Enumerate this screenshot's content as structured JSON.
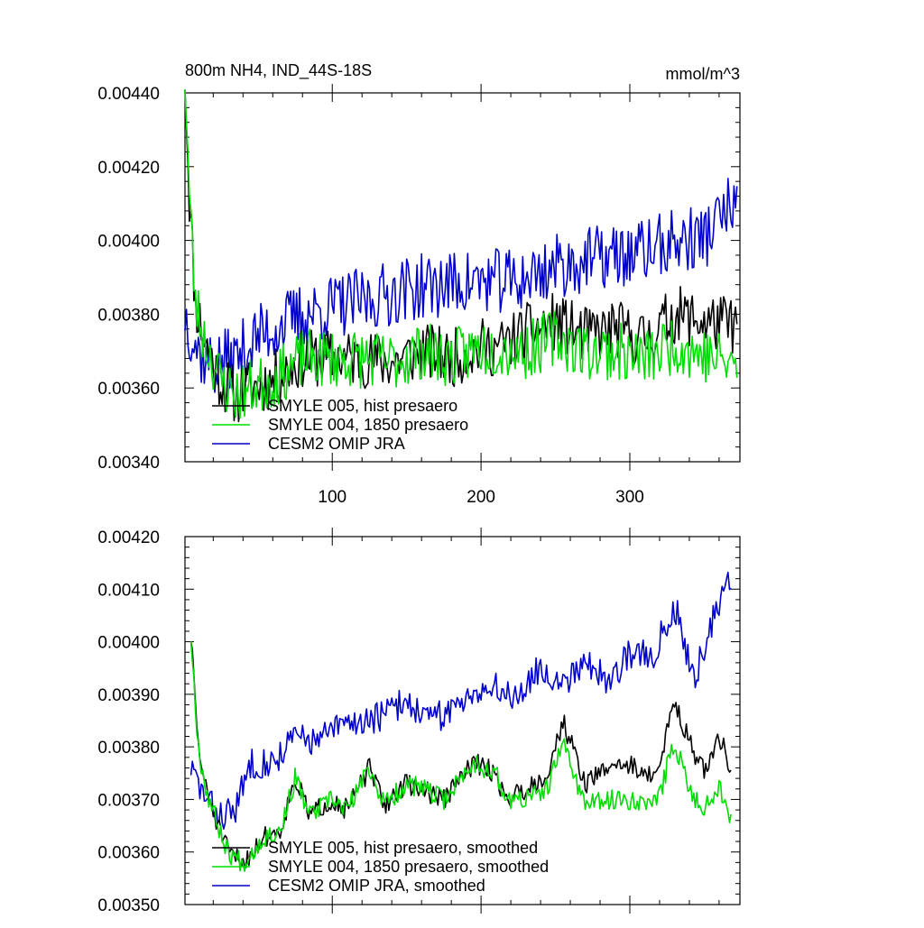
{
  "colors": {
    "hist": "#000000",
    "pre1850": "#00dd00",
    "omip": "#0000cc",
    "axis": "#000000",
    "background": "#ffffff"
  },
  "chart_data": [
    {
      "type": "line",
      "title": "800m NH4, IND_44S-18S",
      "units": "mmol/m^3",
      "xlim": [
        1,
        374
      ],
      "ylim": [
        0.0034,
        0.0044
      ],
      "x_ticks": [
        100,
        200,
        300
      ],
      "y_ticks": [
        0.0034,
        0.0036,
        0.0038,
        0.004,
        0.0042,
        0.0044
      ],
      "y_tick_labels": [
        "0.00340",
        "0.00360",
        "0.00380",
        "0.00400",
        "0.00420",
        "0.00440"
      ],
      "x_tick_labels": [
        "100",
        "200",
        "300"
      ],
      "legend_position": "bottom-left",
      "series": [
        {
          "name": "SMYLE 005, hist presaero",
          "color_key": "hist",
          "x_start": 1,
          "x_end": 372,
          "anchors": [
            [
              1,
              0.00445
            ],
            [
              4,
              0.00412
            ],
            [
              8,
              0.00383
            ],
            [
              15,
              0.00372
            ],
            [
              25,
              0.00362
            ],
            [
              35,
              0.00358
            ],
            [
              45,
              0.0036
            ],
            [
              60,
              0.00362
            ],
            [
              80,
              0.00368
            ],
            [
              100,
              0.00368
            ],
            [
              120,
              0.00368
            ],
            [
              140,
              0.00367
            ],
            [
              160,
              0.0037
            ],
            [
              180,
              0.00368
            ],
            [
              200,
              0.00371
            ],
            [
              213,
              0.00371
            ],
            [
              230,
              0.00375
            ],
            [
              250,
              0.00378
            ],
            [
              270,
              0.00374
            ],
            [
              290,
              0.00376
            ],
            [
              310,
              0.00373
            ],
            [
              330,
              0.0038
            ],
            [
              350,
              0.00378
            ],
            [
              372,
              0.00377
            ]
          ],
          "noise": 8e-05,
          "seed": 11
        },
        {
          "name": "SMYLE 004, 1850 presaero",
          "color_key": "pre1850",
          "x_start": 1,
          "x_end": 372,
          "anchors": [
            [
              1,
              0.00445
            ],
            [
              4,
              0.00412
            ],
            [
              8,
              0.00383
            ],
            [
              15,
              0.00372
            ],
            [
              25,
              0.00362
            ],
            [
              35,
              0.00358
            ],
            [
              45,
              0.0036
            ],
            [
              60,
              0.00362
            ],
            [
              80,
              0.00368
            ],
            [
              100,
              0.00368
            ],
            [
              120,
              0.00368
            ],
            [
              140,
              0.00367
            ],
            [
              160,
              0.0037
            ],
            [
              180,
              0.00368
            ],
            [
              200,
              0.00371
            ],
            [
              213,
              0.00371
            ],
            [
              230,
              0.0037
            ],
            [
              250,
              0.00374
            ],
            [
              270,
              0.0037
            ],
            [
              290,
              0.0037
            ],
            [
              310,
              0.00368
            ],
            [
              330,
              0.00372
            ],
            [
              350,
              0.00369
            ],
            [
              372,
              0.00366
            ]
          ],
          "noise": 8e-05,
          "seed": 23
        },
        {
          "name": "CESM2 OMIP JRA",
          "color_key": "omip",
          "x_start": 1,
          "x_end": 372,
          "anchors": [
            [
              1,
              0.0038
            ],
            [
              10,
              0.0037
            ],
            [
              20,
              0.00366
            ],
            [
              35,
              0.00368
            ],
            [
              50,
              0.00374
            ],
            [
              75,
              0.00379
            ],
            [
              100,
              0.00382
            ],
            [
              125,
              0.00384
            ],
            [
              150,
              0.00387
            ],
            [
              175,
              0.00388
            ],
            [
              200,
              0.00389
            ],
            [
              225,
              0.00389
            ],
            [
              250,
              0.00393
            ],
            [
              275,
              0.00395
            ],
            [
              300,
              0.00396
            ],
            [
              325,
              0.00399
            ],
            [
              350,
              0.00401
            ],
            [
              372,
              0.00411
            ]
          ],
          "noise": 9e-05,
          "seed": 37
        }
      ]
    },
    {
      "type": "line",
      "title": "",
      "units": "",
      "xlim": [
        1,
        374
      ],
      "ylim": [
        0.0035,
        0.0042
      ],
      "x_ticks": [
        100,
        200,
        300
      ],
      "y_ticks": [
        0.0035,
        0.0036,
        0.0037,
        0.0038,
        0.0039,
        0.004,
        0.0041,
        0.0042
      ],
      "y_tick_labels": [
        "0.00350",
        "0.00360",
        "0.00370",
        "0.00380",
        "0.00390",
        "0.00400",
        "0.00410",
        "0.00420"
      ],
      "x_tick_labels": [],
      "legend_position": "bottom-left",
      "series": [
        {
          "name": "SMYLE 005, hist presaero, smoothed",
          "color_key": "hist",
          "x_start": 5,
          "x_end": 368,
          "anchors": [
            [
              5,
              0.00401
            ],
            [
              10,
              0.0038
            ],
            [
              15,
              0.00372
            ],
            [
              22,
              0.00366
            ],
            [
              30,
              0.0036
            ],
            [
              40,
              0.00358
            ],
            [
              55,
              0.00363
            ],
            [
              65,
              0.00364
            ],
            [
              75,
              0.00374
            ],
            [
              85,
              0.00367
            ],
            [
              100,
              0.0037
            ],
            [
              110,
              0.00368
            ],
            [
              125,
              0.00376
            ],
            [
              135,
              0.00369
            ],
            [
              150,
              0.00373
            ],
            [
              160,
              0.00372
            ],
            [
              175,
              0.0037
            ],
            [
              195,
              0.00377
            ],
            [
              210,
              0.00375
            ],
            [
              216,
              0.0037
            ],
            [
              230,
              0.00372
            ],
            [
              245,
              0.00375
            ],
            [
              255,
              0.00385
            ],
            [
              270,
              0.00373
            ],
            [
              290,
              0.00377
            ],
            [
              305,
              0.00376
            ],
            [
              318,
              0.00374
            ],
            [
              330,
              0.00389
            ],
            [
              340,
              0.00381
            ],
            [
              350,
              0.00375
            ],
            [
              360,
              0.00382
            ],
            [
              368,
              0.00376
            ]
          ],
          "noise": 2e-05,
          "seed": 51
        },
        {
          "name": "SMYLE 004, 1850 presaero, smoothed",
          "color_key": "pre1850",
          "x_start": 5,
          "x_end": 368,
          "anchors": [
            [
              5,
              0.00401
            ],
            [
              10,
              0.0038
            ],
            [
              15,
              0.00372
            ],
            [
              22,
              0.00366
            ],
            [
              30,
              0.0036
            ],
            [
              40,
              0.00358
            ],
            [
              55,
              0.00363
            ],
            [
              65,
              0.00364
            ],
            [
              75,
              0.00374
            ],
            [
              85,
              0.00367
            ],
            [
              100,
              0.0037
            ],
            [
              110,
              0.00368
            ],
            [
              125,
              0.00376
            ],
            [
              135,
              0.00369
            ],
            [
              150,
              0.00373
            ],
            [
              160,
              0.00372
            ],
            [
              175,
              0.0037
            ],
            [
              195,
              0.00377
            ],
            [
              210,
              0.00375
            ],
            [
              216,
              0.0037
            ],
            [
              230,
              0.0037
            ],
            [
              245,
              0.00372
            ],
            [
              255,
              0.00381
            ],
            [
              270,
              0.00369
            ],
            [
              290,
              0.0037
            ],
            [
              305,
              0.0037
            ],
            [
              318,
              0.00369
            ],
            [
              330,
              0.00381
            ],
            [
              340,
              0.00372
            ],
            [
              350,
              0.00368
            ],
            [
              360,
              0.00373
            ],
            [
              368,
              0.00366
            ]
          ],
          "noise": 2e-05,
          "seed": 67
        },
        {
          "name": "CESM2 OMIP JRA, smoothed",
          "color_key": "omip",
          "x_start": 5,
          "x_end": 368,
          "anchors": [
            [
              5,
              0.00376
            ],
            [
              15,
              0.0037
            ],
            [
              25,
              0.00367
            ],
            [
              35,
              0.00368
            ],
            [
              45,
              0.00377
            ],
            [
              60,
              0.00377
            ],
            [
              75,
              0.00382
            ],
            [
              90,
              0.00381
            ],
            [
              105,
              0.00384
            ],
            [
              120,
              0.00385
            ],
            [
              135,
              0.00386
            ],
            [
              150,
              0.00389
            ],
            [
              165,
              0.00385
            ],
            [
              180,
              0.00387
            ],
            [
              195,
              0.00391
            ],
            [
              210,
              0.00391
            ],
            [
              225,
              0.0039
            ],
            [
              240,
              0.00395
            ],
            [
              255,
              0.00392
            ],
            [
              270,
              0.00397
            ],
            [
              285,
              0.00392
            ],
            [
              300,
              0.00398
            ],
            [
              315,
              0.00397
            ],
            [
              330,
              0.00407
            ],
            [
              335,
              0.00402
            ],
            [
              342,
              0.00393
            ],
            [
              350,
              0.00398
            ],
            [
              360,
              0.00408
            ],
            [
              368,
              0.00412
            ]
          ],
          "noise": 3e-05,
          "seed": 83
        }
      ]
    }
  ]
}
